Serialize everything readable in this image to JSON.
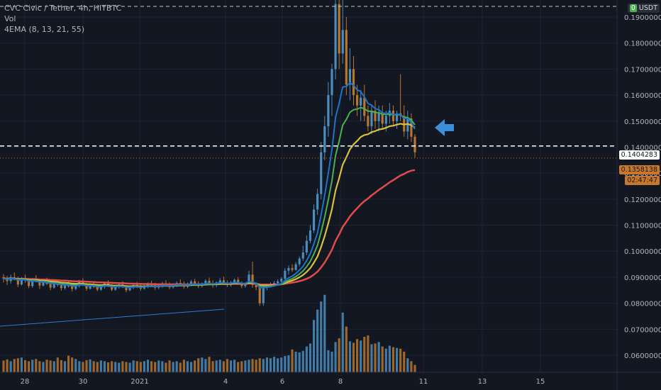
{
  "legend": {
    "title": "CVC Civic / Tether, 4h, HITBTC",
    "vol": "Vol",
    "ema": "4EMA (8, 13, 21, 55)"
  },
  "currency": "USDT",
  "tags": {
    "line_price": "0.1404283",
    "last_price": "0.1358138",
    "countdown": "02:47:47"
  },
  "colors": {
    "background": "#131722",
    "up": "#4c8dbf",
    "down": "#b9772b",
    "ema8": "#1e73c9",
    "ema13": "#4caf50",
    "ema21": "#d8c13f",
    "ema55": "#e34b4b",
    "arrow": "#3d8fdb",
    "last_tag": "#c9772b"
  },
  "chart_data": {
    "type": "candlestick",
    "symbol": "CVC Civic / Tether",
    "interval": "4h",
    "exchange": "HITBTC",
    "y_ticks": [
      "0.1900000",
      "0.1800000",
      "0.1700000",
      "0.1600000",
      "0.1500000",
      "0.1400000",
      "0.1300000",
      "0.1200000",
      "0.1100000",
      "0.1000000",
      "0.0900000",
      "0.0800000",
      "0.0700000",
      "0.0600000"
    ],
    "x_ticks": [
      "28",
      "30",
      "2021",
      "4",
      "6",
      "8",
      "11",
      "13",
      "15"
    ],
    "ylim": [
      0.055,
      0.2
    ],
    "dashed_lines": [
      0.1404283,
      0.2
    ],
    "annotation": "left arrow at 0.1475",
    "candles": [
      [
        0.09,
        0.0912,
        0.088,
        0.0895
      ],
      [
        0.0895,
        0.0905,
        0.087,
        0.0885
      ],
      [
        0.0885,
        0.091,
        0.0875,
        0.09
      ],
      [
        0.09,
        0.0918,
        0.0888,
        0.0892
      ],
      [
        0.0892,
        0.0902,
        0.0862,
        0.0872
      ],
      [
        0.0872,
        0.09,
        0.0868,
        0.0895
      ],
      [
        0.0895,
        0.091,
        0.0878,
        0.0888
      ],
      [
        0.0888,
        0.0896,
        0.0858,
        0.0866
      ],
      [
        0.0866,
        0.0895,
        0.086,
        0.089
      ],
      [
        0.089,
        0.0908,
        0.088,
        0.0882
      ],
      [
        0.0882,
        0.089,
        0.0855,
        0.0868
      ],
      [
        0.0868,
        0.0892,
        0.0864,
        0.0885
      ],
      [
        0.0885,
        0.0898,
        0.087,
        0.0874
      ],
      [
        0.0874,
        0.0885,
        0.085,
        0.086
      ],
      [
        0.086,
        0.088,
        0.0856,
        0.0876
      ],
      [
        0.0876,
        0.089,
        0.0864,
        0.087
      ],
      [
        0.087,
        0.088,
        0.0848,
        0.0858
      ],
      [
        0.0858,
        0.0878,
        0.0852,
        0.0872
      ],
      [
        0.0872,
        0.0888,
        0.086,
        0.0865
      ],
      [
        0.0865,
        0.0876,
        0.0845,
        0.0855
      ],
      [
        0.0855,
        0.087,
        0.085,
        0.0866
      ],
      [
        0.0866,
        0.089,
        0.086,
        0.0884
      ],
      [
        0.0884,
        0.0896,
        0.0866,
        0.087
      ],
      [
        0.087,
        0.0878,
        0.0848,
        0.0856
      ],
      [
        0.0856,
        0.0874,
        0.0852,
        0.0868
      ],
      [
        0.0868,
        0.0882,
        0.0858,
        0.0862
      ],
      [
        0.0862,
        0.0872,
        0.0846,
        0.0852
      ],
      [
        0.0852,
        0.087,
        0.0848,
        0.0864
      ],
      [
        0.0864,
        0.088,
        0.0856,
        0.0876
      ],
      [
        0.0876,
        0.0888,
        0.0862,
        0.0866
      ],
      [
        0.0866,
        0.0874,
        0.0846,
        0.0852
      ],
      [
        0.0852,
        0.0868,
        0.0848,
        0.0862
      ],
      [
        0.0862,
        0.0878,
        0.0856,
        0.0872
      ],
      [
        0.0872,
        0.0884,
        0.0858,
        0.0862
      ],
      [
        0.0862,
        0.087,
        0.0842,
        0.085
      ],
      [
        0.085,
        0.0866,
        0.0846,
        0.086
      ],
      [
        0.086,
        0.0876,
        0.0854,
        0.087
      ],
      [
        0.087,
        0.0882,
        0.0858,
        0.0864
      ],
      [
        0.0864,
        0.0874,
        0.0848,
        0.0856
      ],
      [
        0.0856,
        0.0872,
        0.0852,
        0.0866
      ],
      [
        0.0866,
        0.088,
        0.0858,
        0.0874
      ],
      [
        0.0874,
        0.0886,
        0.0862,
        0.0868
      ],
      [
        0.0868,
        0.0878,
        0.0852,
        0.086
      ],
      [
        0.086,
        0.0874,
        0.0854,
        0.0868
      ],
      [
        0.0868,
        0.0882,
        0.086,
        0.0876
      ],
      [
        0.0876,
        0.0888,
        0.0864,
        0.087
      ],
      [
        0.087,
        0.088,
        0.0854,
        0.0862
      ],
      [
        0.0862,
        0.0876,
        0.0856,
        0.087
      ],
      [
        0.087,
        0.0884,
        0.0862,
        0.0878
      ],
      [
        0.0878,
        0.0892,
        0.0866,
        0.0872
      ],
      [
        0.0872,
        0.0884,
        0.0856,
        0.0864
      ],
      [
        0.0864,
        0.088,
        0.0858,
        0.0874
      ],
      [
        0.0874,
        0.089,
        0.0866,
        0.0884
      ],
      [
        0.0884,
        0.0894,
        0.0868,
        0.0874
      ],
      [
        0.0874,
        0.0884,
        0.0858,
        0.0866
      ],
      [
        0.0866,
        0.088,
        0.086,
        0.0876
      ],
      [
        0.0876,
        0.0892,
        0.0868,
        0.0886
      ],
      [
        0.0886,
        0.0898,
        0.087,
        0.0876
      ],
      [
        0.0876,
        0.0888,
        0.086,
        0.087
      ],
      [
        0.087,
        0.0884,
        0.0862,
        0.088
      ],
      [
        0.088,
        0.0896,
        0.087,
        0.0888
      ],
      [
        0.0888,
        0.0902,
        0.0872,
        0.0878
      ],
      [
        0.0878,
        0.0888,
        0.0862,
        0.087
      ],
      [
        0.087,
        0.0885,
        0.0864,
        0.088
      ],
      [
        0.088,
        0.0895,
        0.0874,
        0.089
      ],
      [
        0.089,
        0.09,
        0.087,
        0.0876
      ],
      [
        0.0876,
        0.0884,
        0.0858,
        0.0866
      ],
      [
        0.0866,
        0.088,
        0.086,
        0.0876
      ],
      [
        0.0876,
        0.0925,
        0.0872,
        0.091
      ],
      [
        0.091,
        0.096,
        0.086,
        0.087
      ],
      [
        0.087,
        0.088,
        0.085,
        0.0862
      ],
      [
        0.0862,
        0.0876,
        0.079,
        0.08
      ],
      [
        0.08,
        0.0868,
        0.079,
        0.086
      ],
      [
        0.086,
        0.0875,
        0.085,
        0.0866
      ],
      [
        0.0866,
        0.088,
        0.086,
        0.0872
      ],
      [
        0.0872,
        0.0886,
        0.0864,
        0.0878
      ],
      [
        0.0878,
        0.0892,
        0.0868,
        0.0884
      ],
      [
        0.0884,
        0.09,
        0.0876,
        0.0894
      ],
      [
        0.0894,
        0.0935,
        0.0888,
        0.0925
      ],
      [
        0.0925,
        0.0945,
        0.091,
        0.0935
      ],
      [
        0.0935,
        0.095,
        0.092,
        0.0928
      ],
      [
        0.0928,
        0.0958,
        0.0925,
        0.095
      ],
      [
        0.095,
        0.098,
        0.0942,
        0.0972
      ],
      [
        0.0972,
        0.102,
        0.0962,
        0.0995
      ],
      [
        0.0995,
        0.106,
        0.0985,
        0.104
      ],
      [
        0.104,
        0.11,
        0.103,
        0.108
      ],
      [
        0.108,
        0.118,
        0.107,
        0.116
      ],
      [
        0.116,
        0.124,
        0.114,
        0.122
      ],
      [
        0.122,
        0.142,
        0.12,
        0.138
      ],
      [
        0.138,
        0.152,
        0.135,
        0.148
      ],
      [
        0.148,
        0.165,
        0.144,
        0.16
      ],
      [
        0.16,
        0.172,
        0.152,
        0.17
      ],
      [
        0.17,
        0.198,
        0.166,
        0.195
      ],
      [
        0.195,
        0.2,
        0.17,
        0.176
      ],
      [
        0.176,
        0.2,
        0.172,
        0.185
      ],
      [
        0.185,
        0.19,
        0.16,
        0.164
      ],
      [
        0.164,
        0.178,
        0.158,
        0.17
      ],
      [
        0.17,
        0.175,
        0.156,
        0.16
      ],
      [
        0.16,
        0.164,
        0.152,
        0.156
      ],
      [
        0.156,
        0.162,
        0.15,
        0.159
      ],
      [
        0.159,
        0.164,
        0.15,
        0.152
      ],
      [
        0.152,
        0.156,
        0.146,
        0.148
      ],
      [
        0.148,
        0.156,
        0.145,
        0.154
      ],
      [
        0.154,
        0.158,
        0.147,
        0.15
      ],
      [
        0.15,
        0.156,
        0.146,
        0.153
      ],
      [
        0.153,
        0.156,
        0.147,
        0.149
      ],
      [
        0.149,
        0.154,
        0.146,
        0.152
      ],
      [
        0.152,
        0.157,
        0.149,
        0.154
      ],
      [
        0.154,
        0.156,
        0.148,
        0.15
      ],
      [
        0.15,
        0.154,
        0.147,
        0.153
      ],
      [
        0.153,
        0.168,
        0.15,
        0.152
      ],
      [
        0.152,
        0.156,
        0.144,
        0.146
      ],
      [
        0.146,
        0.154,
        0.143,
        0.151
      ],
      [
        0.151,
        0.153,
        0.142,
        0.144
      ],
      [
        0.144,
        0.145,
        0.136,
        0.138
      ]
    ],
    "volume": [
      0.32,
      0.35,
      0.3,
      0.36,
      0.38,
      0.4,
      0.33,
      0.3,
      0.34,
      0.36,
      0.3,
      0.28,
      0.34,
      0.32,
      0.3,
      0.4,
      0.33,
      0.3,
      0.45,
      0.4,
      0.36,
      0.3,
      0.28,
      0.33,
      0.35,
      0.3,
      0.28,
      0.32,
      0.3,
      0.27,
      0.3,
      0.28,
      0.26,
      0.3,
      0.28,
      0.26,
      0.32,
      0.3,
      0.28,
      0.3,
      0.34,
      0.3,
      0.28,
      0.32,
      0.3,
      0.26,
      0.32,
      0.28,
      0.3,
      0.26,
      0.34,
      0.3,
      0.28,
      0.32,
      0.38,
      0.4,
      0.36,
      0.42,
      0.3,
      0.32,
      0.34,
      0.3,
      0.36,
      0.32,
      0.34,
      0.28,
      0.3,
      0.32,
      0.34,
      0.36,
      0.34,
      0.38,
      0.36,
      0.4,
      0.38,
      0.42,
      0.38,
      0.4,
      0.44,
      0.46,
      0.62,
      0.56,
      0.54,
      0.58,
      0.7,
      0.78,
      1.42,
      1.7,
      1.92,
      2.1,
      0.6,
      0.56,
      0.82,
      0.92,
      1.62,
      1.24,
      0.84,
      0.8,
      0.9,
      0.86,
      0.96,
      1.0,
      0.76,
      0.78,
      0.82,
      0.7,
      0.64,
      0.72,
      0.68,
      0.66,
      0.64,
      0.56,
      0.38,
      0.3,
      0.2
    ]
  }
}
